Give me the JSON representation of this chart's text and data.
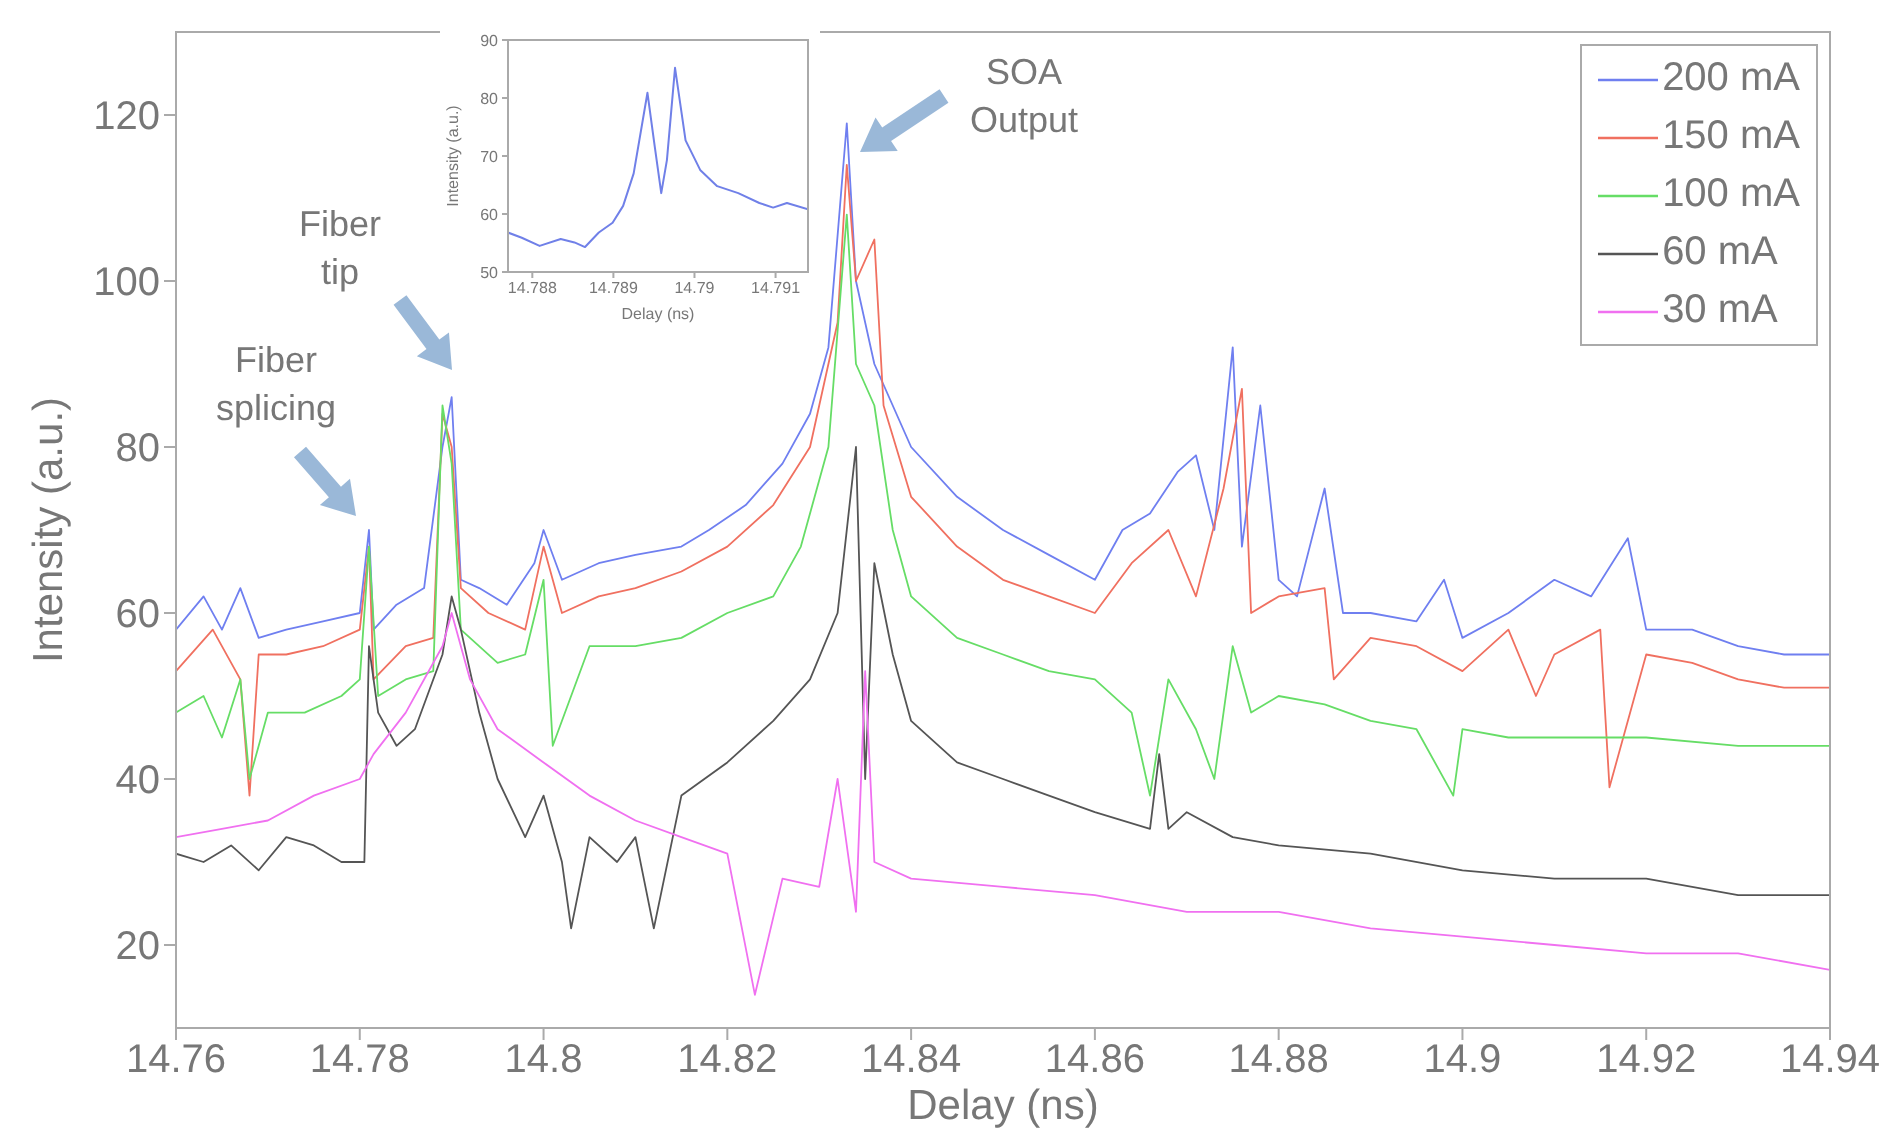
{
  "chart_data": [
    {
      "type": "line",
      "xlabel": "Delay (ns)",
      "ylabel": "Intensity (a.u.)",
      "xlim": [
        14.76,
        14.94
      ],
      "xticks": [
        14.76,
        14.78,
        14.8,
        14.82,
        14.84,
        14.86,
        14.88,
        14.9,
        14.92,
        14.94
      ],
      "ylim": [
        10,
        130
      ],
      "yticks": [
        20,
        40,
        60,
        80,
        100,
        120
      ],
      "grid": false,
      "legend": "top right",
      "marker": "none",
      "line_style": "solid",
      "annotations": [
        "Fiber splicing",
        "Fiber tip",
        "SOA Output"
      ],
      "series": [
        {
          "name": "200 mA",
          "color": "#6f7ff0",
          "x": [
            14.76,
            14.763,
            14.765,
            14.767,
            14.769,
            14.772,
            14.776,
            14.78,
            14.781,
            14.7815,
            14.784,
            14.787,
            14.789,
            14.79,
            14.791,
            14.793,
            14.796,
            14.799,
            14.8,
            14.802,
            14.806,
            14.81,
            14.815,
            14.818,
            14.822,
            14.826,
            14.829,
            14.831,
            14.833,
            14.834,
            14.836,
            14.84,
            14.845,
            14.85,
            14.855,
            14.86,
            14.863,
            14.866,
            14.869,
            14.871,
            14.873,
            14.875,
            14.876,
            14.878,
            14.88,
            14.882,
            14.885,
            14.887,
            14.89,
            14.895,
            14.898,
            14.9,
            14.905,
            14.91,
            14.914,
            14.918,
            14.92,
            14.925,
            14.93,
            14.935,
            14.94
          ],
          "values": [
            58,
            62,
            58,
            63,
            57,
            58,
            59,
            60,
            70,
            58,
            61,
            63,
            80,
            86,
            64,
            63,
            61,
            66,
            70,
            64,
            66,
            67,
            68,
            70,
            73,
            78,
            84,
            92,
            119,
            100,
            90,
            80,
            74,
            70,
            67,
            64,
            70,
            72,
            77,
            79,
            70,
            92,
            68,
            85,
            64,
            62,
            75,
            60,
            60,
            59,
            64,
            57,
            60,
            64,
            62,
            69,
            58,
            58,
            56,
            55,
            55
          ]
        },
        {
          "name": "150 mA",
          "color": "#f07060",
          "x": [
            14.76,
            14.764,
            14.767,
            14.768,
            14.769,
            14.772,
            14.776,
            14.78,
            14.781,
            14.7815,
            14.785,
            14.788,
            14.789,
            14.79,
            14.791,
            14.794,
            14.798,
            14.8,
            14.802,
            14.806,
            14.81,
            14.815,
            14.82,
            14.825,
            14.829,
            14.832,
            14.833,
            14.834,
            14.836,
            14.837,
            14.84,
            14.845,
            14.85,
            14.855,
            14.86,
            14.864,
            14.868,
            14.871,
            14.874,
            14.876,
            14.877,
            14.88,
            14.885,
            14.886,
            14.89,
            14.895,
            14.9,
            14.905,
            14.908,
            14.91,
            14.915,
            14.916,
            14.92,
            14.925,
            14.93,
            14.935,
            14.94
          ],
          "values": [
            53,
            58,
            52,
            38,
            55,
            55,
            56,
            58,
            68,
            52,
            56,
            57,
            84,
            80,
            63,
            60,
            58,
            68,
            60,
            62,
            63,
            65,
            68,
            73,
            80,
            95,
            114,
            100,
            105,
            85,
            74,
            68,
            64,
            62,
            60,
            66,
            70,
            62,
            75,
            87,
            60,
            62,
            63,
            52,
            57,
            56,
            53,
            58,
            50,
            55,
            58,
            39,
            55,
            54,
            52,
            51,
            51
          ]
        },
        {
          "name": "100 mA",
          "color": "#66dd66",
          "x": [
            14.76,
            14.763,
            14.765,
            14.767,
            14.768,
            14.77,
            14.774,
            14.778,
            14.78,
            14.781,
            14.782,
            14.785,
            14.788,
            14.789,
            14.79,
            14.791,
            14.795,
            14.798,
            14.8,
            14.801,
            14.805,
            14.81,
            14.815,
            14.82,
            14.825,
            14.828,
            14.831,
            14.833,
            14.834,
            14.836,
            14.838,
            14.84,
            14.845,
            14.85,
            14.855,
            14.86,
            14.864,
            14.866,
            14.868,
            14.871,
            14.873,
            14.875,
            14.877,
            14.88,
            14.885,
            14.89,
            14.895,
            14.899,
            14.9,
            14.905,
            14.91,
            14.92,
            14.93,
            14.94
          ],
          "values": [
            48,
            50,
            45,
            52,
            40,
            48,
            48,
            50,
            52,
            68,
            50,
            52,
            53,
            85,
            78,
            58,
            54,
            55,
            64,
            44,
            56,
            56,
            57,
            60,
            62,
            68,
            80,
            108,
            90,
            85,
            70,
            62,
            57,
            55,
            53,
            52,
            48,
            38,
            52,
            46,
            40,
            56,
            48,
            50,
            49,
            47,
            46,
            38,
            46,
            45,
            45,
            45,
            44,
            44
          ]
        },
        {
          "name": "60 mA",
          "color": "#555555",
          "x": [
            14.76,
            14.763,
            14.766,
            14.769,
            14.772,
            14.775,
            14.778,
            14.7805,
            14.781,
            14.782,
            14.784,
            14.786,
            14.789,
            14.79,
            14.791,
            14.793,
            14.795,
            14.798,
            14.8,
            14.802,
            14.803,
            14.805,
            14.808,
            14.81,
            14.812,
            14.815,
            14.82,
            14.825,
            14.829,
            14.832,
            14.834,
            14.835,
            14.836,
            14.838,
            14.84,
            14.845,
            14.85,
            14.855,
            14.86,
            14.866,
            14.867,
            14.868,
            14.87,
            14.875,
            14.88,
            14.89,
            14.9,
            14.91,
            14.92,
            14.93,
            14.94
          ],
          "values": [
            31,
            30,
            32,
            29,
            33,
            32,
            30,
            30,
            56,
            48,
            44,
            46,
            55,
            62,
            58,
            48,
            40,
            33,
            38,
            30,
            22,
            33,
            30,
            33,
            22,
            38,
            42,
            47,
            52,
            60,
            80,
            40,
            66,
            55,
            47,
            42,
            40,
            38,
            36,
            34,
            43,
            34,
            36,
            33,
            32,
            31,
            29,
            28,
            28,
            26,
            26
          ]
        },
        {
          "name": "30 mA",
          "color": "#f070f0",
          "x": [
            14.76,
            14.765,
            14.77,
            14.775,
            14.78,
            14.7815,
            14.785,
            14.789,
            14.79,
            14.792,
            14.795,
            14.8,
            14.805,
            14.81,
            14.815,
            14.82,
            14.823,
            14.826,
            14.83,
            14.832,
            14.834,
            14.835,
            14.836,
            14.84,
            14.85,
            14.86,
            14.87,
            14.88,
            14.89,
            14.9,
            14.91,
            14.92,
            14.93,
            14.94
          ],
          "values": [
            33,
            34,
            35,
            38,
            40,
            43,
            48,
            56,
            60,
            52,
            46,
            42,
            38,
            35,
            33,
            31,
            14,
            28,
            27,
            40,
            24,
            53,
            30,
            28,
            27,
            26,
            24,
            24,
            22,
            21,
            20,
            19,
            19,
            17
          ]
        }
      ]
    },
    {
      "type": "line",
      "xlabel": "Delay (ns)",
      "ylabel": "Intensity (a.u.)",
      "xlim": [
        14.7877,
        14.7914
      ],
      "xticks": [
        14.788,
        14.789,
        14.79,
        14.791
      ],
      "ylim": [
        50,
        90
      ],
      "yticks": [
        50,
        60,
        70,
        80,
        90
      ],
      "grid": false,
      "legend": false,
      "marker": "none",
      "line_style": "solid",
      "series": [
        {
          "color": "#7080e8",
          "x": [
            14.7877,
            14.78787,
            14.78809,
            14.78835,
            14.78852,
            14.78865,
            14.78882,
            14.78899,
            14.78912,
            14.78925,
            14.78942,
            14.78951,
            14.78959,
            14.78966,
            14.78976,
            14.78989,
            14.79007,
            14.79028,
            14.79054,
            14.7908,
            14.79097,
            14.79114,
            14.7914
          ],
          "values": [
            56.8,
            55.9,
            54.5,
            55.7,
            55.1,
            54.3,
            56.8,
            58.5,
            61.4,
            67,
            80.9,
            71.6,
            63.6,
            69.3,
            85.2,
            72.7,
            67.6,
            64.8,
            63.6,
            61.9,
            61.1,
            61.9,
            60.8
          ]
        }
      ]
    }
  ]
}
